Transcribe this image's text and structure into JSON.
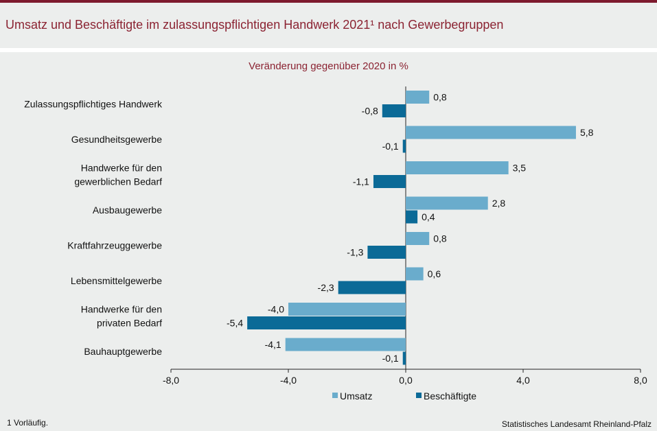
{
  "title": "Umsatz und Beschäftigte im zulassungspflichtigen Handwerk 2021¹ nach Gewerbegruppen",
  "footnote": "1 Vorläufig.",
  "source": "Statistisches Landesamt Rheinland-Pfalz",
  "colors": {
    "umsatz": "#6aaccc",
    "beschaeftigte": "#0b6a97",
    "title": "#8b2332"
  },
  "chart_data": {
    "type": "bar",
    "orientation": "horizontal",
    "title": "Veränderung gegenüber 2020 in %",
    "categories": [
      [
        "Zulassungspflichtiges Handwerk"
      ],
      [
        "Gesundheitsgewerbe"
      ],
      [
        "Handwerke für den",
        "gewerblichen Bedarf"
      ],
      [
        "Ausbaugewerbe"
      ],
      [
        "Kraftfahrzeuggewerbe"
      ],
      [
        "Lebensmittelgewerbe"
      ],
      [
        "Handwerke für den",
        "privaten Bedarf"
      ],
      [
        "Bauhauptgewerbe"
      ]
    ],
    "series": [
      {
        "name": "Umsatz",
        "values": [
          0.8,
          5.8,
          3.5,
          2.8,
          0.8,
          0.6,
          -4.0,
          -4.1
        ],
        "labels": [
          "0,8",
          "5,8",
          "3,5",
          "2,8",
          "0,8",
          "0,6",
          "-4,0",
          "-4,1"
        ]
      },
      {
        "name": "Beschäftigte",
        "values": [
          -0.8,
          -0.1,
          -1.1,
          0.4,
          -1.3,
          -2.3,
          -5.4,
          -0.1
        ],
        "labels": [
          "-0,8",
          "-0,1",
          "-1,1",
          "0,4",
          "-1,3",
          "-2,3",
          "-5,4",
          "-0,1"
        ]
      }
    ],
    "xlim": [
      -8,
      8
    ],
    "xticks": [
      -8,
      -4,
      0,
      4,
      8
    ],
    "xtick_labels": [
      "-8,0",
      "-4,0",
      "0,0",
      "4,0",
      "8,0"
    ],
    "legend": "bottom-center",
    "grid": false
  }
}
